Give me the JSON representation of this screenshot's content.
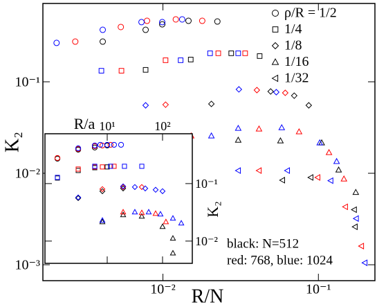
{
  "chart_data": [
    {
      "type": "scatter",
      "xlabel": "R/N",
      "ylabel": "K₂",
      "log_x": true,
      "log_y": true,
      "xlim": [
        0.00169,
        0.231
      ],
      "ylim": [
        0.00067,
        0.718
      ],
      "xticks": [
        {
          "value": 0.01,
          "label": "10⁻²"
        },
        {
          "value": 0.1,
          "label": "10⁻¹"
        }
      ],
      "yticks": [
        {
          "value": 0.001,
          "label": "10⁻³"
        },
        {
          "value": 0.01,
          "label": "10⁻²"
        },
        {
          "value": 0.1,
          "label": "10⁻¹"
        }
      ],
      "legend": [
        {
          "label": "ρ/R = 1/2",
          "marker": "circle"
        },
        {
          "label": "1/4",
          "marker": "square"
        },
        {
          "label": "1/8",
          "marker": "diamond"
        },
        {
          "label": "1/16",
          "marker": "triangle-up"
        },
        {
          "label": "1/32",
          "marker": "triangle-left"
        }
      ],
      "annotations": [
        "black: N=512",
        "red: 768, blue: 1024"
      ],
      "series": [
        {
          "marker": "circle",
          "color": "#000000",
          "x": [
            0.0041,
            0.00774,
            0.0099,
            0.0146,
            0.0224
          ],
          "values": [
            0.275,
            0.37,
            0.425,
            0.464,
            0.456
          ]
        },
        {
          "marker": "circle",
          "color": "#ff0000",
          "x": [
            0.00273,
            0.00536,
            0.0079,
            0.0121,
            0.0179
          ],
          "values": [
            0.275,
            0.397,
            0.464,
            0.481,
            0.464
          ]
        },
        {
          "marker": "circle",
          "color": "#0000ff",
          "x": [
            0.00207,
            0.0041,
            0.00728,
            0.0099,
            0.0133
          ],
          "values": [
            0.266,
            0.37,
            0.449,
            0.449,
            0.481
          ]
        },
        {
          "marker": "square",
          "color": "#000000",
          "x": [
            0.00774,
            0.0151,
            0.0275,
            0.0419
          ],
          "values": [
            0.135,
            0.175,
            0.205,
            0.191
          ]
        },
        {
          "marker": "square",
          "color": "#ff0000",
          "x": [
            0.00541,
            0.0104,
            0.0227,
            0.0338
          ],
          "values": [
            0.132,
            0.172,
            0.205,
            0.205
          ]
        },
        {
          "marker": "square",
          "color": "#0000ff",
          "x": [
            0.00402,
            0.013,
            0.0201,
            0.0305
          ],
          "values": [
            0.132,
            0.172,
            0.205,
            0.205
          ]
        },
        {
          "marker": "diamond",
          "color": "#000000",
          "x": [
            0.0205,
            0.0493,
            0.0699,
            0.0867
          ],
          "values": [
            0.0573,
            0.0784,
            0.0705,
            0.0553
          ]
        },
        {
          "marker": "diamond",
          "color": "#ff0000",
          "x": [
            0.0104,
            0.0402,
            0.0612
          ],
          "values": [
            0.0562,
            0.0811,
            0.0757
          ]
        },
        {
          "marker": "diamond",
          "color": "#0000ff",
          "x": [
            0.00774,
            0.0308,
            0.0536
          ],
          "values": [
            0.0553,
            0.0826,
            0.077
          ]
        },
        {
          "marker": "triangle-up",
          "color": "#000000",
          "x": [
            0.0305,
            0.057,
            0.105,
            0.135,
            0.174
          ],
          "values": [
            0.0231,
            0.0227,
            0.0216,
            0.0109,
            0.0062
          ]
        },
        {
          "marker": "triangle-up",
          "color": "#ff0000",
          "x": [
            0.0152,
            0.0415,
            0.0751,
            0.117,
            0.146
          ],
          "values": [
            0.0257,
            0.0306,
            0.0285,
            0.0169,
            0.0087
          ]
        },
        {
          "marker": "triangle-up",
          "color": "#0000ff",
          "x": [
            0.0205,
            0.0305,
            0.0581,
            0.102,
            0.131
          ],
          "values": [
            0.0257,
            0.0311,
            0.0316,
            0.0216,
            0.0135
          ]
        },
        {
          "marker": "triangle-left",
          "color": "#000000",
          "x": [
            0.0587,
            0.0893,
            0.17,
            0.172
          ],
          "values": [
            0.0084,
            0.009,
            0.004,
            0.0026
          ]
        },
        {
          "marker": "triangle-left",
          "color": "#ff0000",
          "x": [
            0.0415,
            0.099,
            0.149,
            0.189
          ],
          "values": [
            0.0107,
            0.009,
            0.0043,
            0.0016
          ]
        },
        {
          "marker": "triangle-left",
          "color": "#0000ff",
          "x": [
            0.0305,
            0.0631,
            0.12,
            0.175,
            0.199
          ],
          "values": [
            0.0107,
            0.0107,
            0.0083,
            0.0032,
            0.00105
          ]
        }
      ]
    },
    {
      "type": "scatter",
      "xlabel": "R/a",
      "ylabel": "K₂",
      "log_x": true,
      "log_y": true,
      "xlim": [
        0.75,
        345
      ],
      "ylim": [
        0.0041,
        0.736
      ],
      "xticks": [
        {
          "value": 10,
          "label": "10¹"
        },
        {
          "value": 100,
          "label": "10²"
        }
      ],
      "yticks": [
        {
          "value": 0.01,
          "label": "10⁻²"
        },
        {
          "value": 0.1,
          "label": "10⁻¹"
        }
      ],
      "series": [
        {
          "marker": "circle",
          "color": "#000000",
          "x": [
            1.26,
            2.99,
            5.96,
            10
          ],
          "values": [
            0.271,
            0.389,
            0.424,
            0.46
          ]
        },
        {
          "marker": "circle",
          "color": "#ff0000",
          "x": [
            1.26,
            2.99,
            5.96,
            8.18,
            11.5
          ],
          "values": [
            0.279,
            0.4,
            0.448,
            0.46,
            0.473
          ]
        },
        {
          "marker": "circle",
          "color": "#0000ff",
          "x": [
            2.99,
            5.96,
            7.5,
            10,
            13.3,
            17.8
          ],
          "values": [
            0.411,
            0.46,
            0.473,
            0.473,
            0.473,
            0.473
          ]
        },
        {
          "marker": "square",
          "color": "#000000",
          "x": [
            1.26,
            2.99,
            5.96,
            10
          ],
          "values": [
            0.125,
            0.169,
            0.189,
            0.195
          ]
        },
        {
          "marker": "square",
          "color": "#ff0000",
          "x": [
            2.99,
            5.96,
            8.18,
            13.3
          ],
          "values": [
            0.179,
            0.195,
            0.195,
            0.2
          ]
        },
        {
          "marker": "square",
          "color": "#0000ff",
          "x": [
            1.26,
            5.96,
            11.5,
            20.5,
            42.2
          ],
          "values": [
            0.128,
            0.2,
            0.2,
            0.2,
            0.2
          ]
        },
        {
          "marker": "diamond",
          "color": "#000000",
          "x": [
            2.99,
            8.18,
            19.4
          ],
          "values": [
            0.0559,
            0.0737,
            0.0824
          ]
        },
        {
          "marker": "diamond",
          "color": "#ff0000",
          "x": [
            8.18,
            19.4,
            42.2
          ],
          "values": [
            0.0801,
            0.0871,
            0.0871
          ]
        },
        {
          "marker": "diamond",
          "color": "#0000ff",
          "x": [
            2.99,
            19.4,
            31.6,
            48.7,
            75,
            100
          ],
          "values": [
            0.0574,
            0.0895,
            0.0871,
            0.0824,
            0.078,
            0.0737
          ]
        },
        {
          "marker": "triangle-up",
          "color": "#000000",
          "x": [
            8.18,
            19.4,
            42.2,
            100,
            154,
            154
          ],
          "values": [
            0.0217,
            0.0287,
            0.0271,
            0.0179,
            0.0112,
            0.0062
          ]
        },
        {
          "marker": "triangle-up",
          "color": "#ff0000",
          "x": [
            19.4,
            42.2,
            75,
            115
          ],
          "values": [
            0.0321,
            0.0312,
            0.0303,
            0.0217
          ]
        },
        {
          "marker": "triangle-up",
          "color": "#0000ff",
          "x": [
            8.18,
            31.6,
            56.2,
            91.7,
            154,
            218
          ],
          "values": [
            0.023,
            0.0321,
            0.0321,
            0.0295,
            0.025,
            0.0206
          ]
        }
      ]
    }
  ]
}
